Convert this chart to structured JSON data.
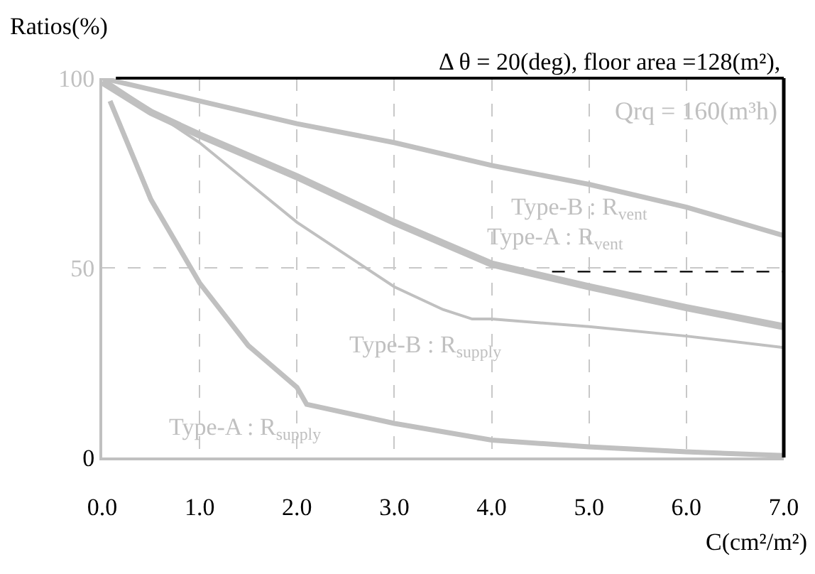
{
  "chart_data": {
    "type": "line",
    "title": "Δ θ = 20(deg), floor area =128(m²),",
    "xlabel": "C(cm²/m²)",
    "ylabel": "Ratios(%)",
    "xlim": [
      0,
      7
    ],
    "xticks": [
      {
        "value": 0,
        "label": "0.0"
      },
      {
        "value": 1,
        "label": "1.0"
      },
      {
        "value": 2,
        "label": "2.0"
      },
      {
        "value": 3,
        "label": "3.0"
      },
      {
        "value": 4,
        "label": "4.0"
      },
      {
        "value": 5,
        "label": "5.0"
      },
      {
        "value": 6,
        "label": "6.0"
      },
      {
        "value": 7,
        "label": "7.0"
      }
    ],
    "ylim": [
      0,
      100
    ],
    "yticks": [
      0,
      50,
      100
    ],
    "grid": true,
    "marker": "none",
    "line_style": "solid",
    "series": [
      {
        "color": "#c0c0c0",
        "x": [
          0,
          1,
          2,
          3,
          4,
          5,
          6,
          7
        ],
        "values": [
          100,
          94,
          88,
          83,
          77,
          72,
          66,
          58.5
        ]
      },
      {
        "color": "#c0c0c0",
        "x": [
          0,
          0.5,
          1,
          2,
          3,
          4,
          5,
          6,
          7
        ],
        "values": [
          99,
          91,
          85,
          74,
          62,
          51,
          45,
          39.5,
          34.5
        ]
      },
      {
        "color": "#c0c0c0",
        "x": [
          0,
          1,
          2,
          3,
          3.5,
          3.8,
          4,
          5,
          6,
          7
        ],
        "values": [
          100,
          83,
          62,
          45,
          39,
          36.5,
          36.5,
          34.5,
          32,
          29
        ]
      },
      {
        "color": "#c0c0c0",
        "x": [
          0.08,
          0.5,
          1,
          1.5,
          2,
          2.1,
          3,
          4,
          5,
          6,
          7
        ],
        "values": [
          94,
          68,
          46,
          29.5,
          18.5,
          14,
          9,
          4.6,
          2.8,
          1.5,
          0.5
        ]
      }
    ],
    "ref_lines": [
      {
        "axis": "y",
        "value": 49,
        "color": "#000000",
        "line_style": "dashed"
      }
    ],
    "annotations": [
      "Qrq = 160(m³h)",
      "Type-B : R$_{vent}$",
      "Type-A : R$_{vent}$",
      "Type-B : R$_{supply}$",
      "Type-A : R$_{supply}$"
    ]
  }
}
